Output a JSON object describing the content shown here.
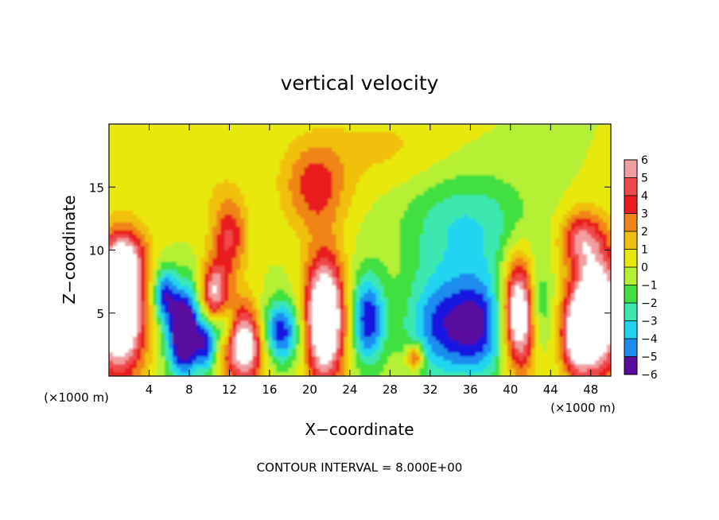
{
  "chart_data": {
    "type": "heatmap",
    "title": "vertical velocity",
    "xlabel": "X−coordinate",
    "ylabel": "Z−coordinate",
    "x_unit_left": "(×1000 m)",
    "x_unit_right": "(×1000 m)",
    "footer": "CONTOUR INTERVAL = 8.000E+00",
    "xlim": [
      0,
      50
    ],
    "ylim": [
      0,
      20
    ],
    "x_ticks": [
      4,
      8,
      12,
      16,
      20,
      24,
      28,
      32,
      36,
      40,
      44,
      48
    ],
    "y_ticks": [
      5,
      10,
      15
    ],
    "x_tick_labels": [
      "4",
      "8",
      "12",
      "16",
      "20",
      "24",
      "28",
      "32",
      "36",
      "40",
      "44",
      "48"
    ],
    "y_tick_labels": [
      "5",
      "10",
      "15"
    ],
    "colorbar": {
      "levels": [
        6,
        5,
        4,
        3,
        2,
        1,
        0,
        -1,
        -2,
        -3,
        -4,
        -5,
        -6
      ],
      "labels": [
        "6",
        "5",
        "4",
        "3",
        "2",
        "1",
        "0",
        "−1",
        "−2",
        "−3",
        "−4",
        "−5",
        "−6"
      ],
      "colors": [
        "#f09ea0",
        "#f04848",
        "#e81c1c",
        "#f08418",
        "#f0c010",
        "#e8e80c",
        "#b4f034",
        "#40e040",
        "#3ce8b0",
        "#20d4f0",
        "#1c8cf0",
        "#1414e0",
        "#5a0a9e"
      ],
      "over_color": "#ffffff"
    },
    "cells": [
      {
        "x": 1.0,
        "z": 5.0,
        "sx": 1.8,
        "sz": 3.5,
        "w": 10
      },
      {
        "x": 1.5,
        "z": 9.5,
        "sx": 1.5,
        "sz": 1.5,
        "w": 4
      },
      {
        "x": 7.5,
        "z": 3.5,
        "sx": 1.2,
        "sz": 2.5,
        "w": -9
      },
      {
        "x": 5.5,
        "z": 6.5,
        "sx": 0.8,
        "sz": 1.5,
        "w": -5
      },
      {
        "x": 9.8,
        "z": 2.5,
        "sx": 0.7,
        "sz": 1.5,
        "w": -5
      },
      {
        "x": 10.5,
        "z": 6.5,
        "sx": 1.0,
        "sz": 1.8,
        "w": 6
      },
      {
        "x": 12.0,
        "z": 11.0,
        "sx": 1.2,
        "sz": 2.2,
        "w": 4
      },
      {
        "x": 13.5,
        "z": 2.5,
        "sx": 1.5,
        "sz": 2.2,
        "w": 8
      },
      {
        "x": 11.5,
        "z": 4.0,
        "sx": 0.8,
        "sz": 1.2,
        "w": -4
      },
      {
        "x": 17.0,
        "z": 3.5,
        "sx": 1.5,
        "sz": 1.8,
        "w": -6
      },
      {
        "x": 21.5,
        "z": 4.5,
        "sx": 1.4,
        "sz": 3.5,
        "w": 10
      },
      {
        "x": 20.5,
        "z": 15.0,
        "sx": 2.2,
        "sz": 2.5,
        "w": 3.5
      },
      {
        "x": 25.8,
        "z": 4.5,
        "sx": 1.2,
        "sz": 2.5,
        "w": -6
      },
      {
        "x": 30.5,
        "z": 1.5,
        "sx": 0.6,
        "sz": 0.7,
        "w": 5
      },
      {
        "x": 33.0,
        "z": 4.0,
        "sx": 2.5,
        "sz": 3.0,
        "w": -5
      },
      {
        "x": 37.0,
        "z": 4.0,
        "sx": 2.0,
        "sz": 3.0,
        "w": -5
      },
      {
        "x": 35.5,
        "z": 12.0,
        "sx": 4.5,
        "sz": 3.0,
        "w": -3
      },
      {
        "x": 41.0,
        "z": 5.0,
        "sx": 1.2,
        "sz": 3.0,
        "w": 10
      },
      {
        "x": 42.5,
        "z": 5.5,
        "sx": 1.0,
        "sz": 2.5,
        "w": -4
      },
      {
        "x": 48.5,
        "z": 5.0,
        "sx": 1.8,
        "sz": 3.5,
        "w": 10
      },
      {
        "x": 46.5,
        "z": 3.0,
        "sx": 1.0,
        "sz": 2.0,
        "w": 5
      },
      {
        "x": 47.0,
        "z": 11.0,
        "sx": 1.5,
        "sz": 1.5,
        "w": 4
      },
      {
        "x": 27.5,
        "z": 18.0,
        "sx": 5.0,
        "sz": 2.5,
        "w": 1.2
      },
      {
        "x": 8.0,
        "z": 16.0,
        "sx": 4.0,
        "sz": 3.0,
        "w": 0.8
      }
    ]
  }
}
